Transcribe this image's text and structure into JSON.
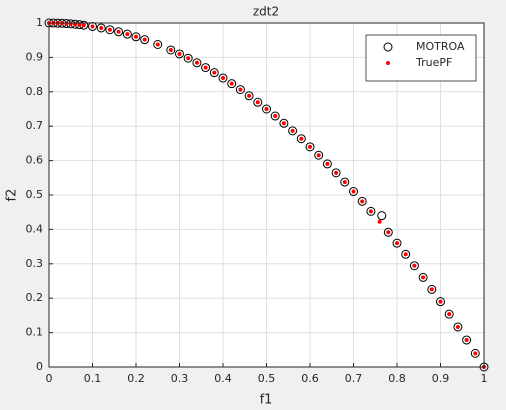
{
  "chart_data": {
    "type": "scatter",
    "title": "zdt2",
    "xlabel": "f1",
    "ylabel": "f2",
    "xlim": [
      0,
      1
    ],
    "ylim": [
      0,
      1
    ],
    "xticks": [
      0,
      0.1,
      0.2,
      0.3,
      0.4,
      0.5,
      0.6,
      0.7,
      0.8,
      0.9,
      1
    ],
    "yticks": [
      0,
      0.1,
      0.2,
      0.3,
      0.4,
      0.5,
      0.6,
      0.7,
      0.8,
      0.9,
      1
    ],
    "grid": true,
    "legend": "upper right",
    "series": [
      {
        "name": "MOTROA",
        "color": "#000000",
        "marker": "circle",
        "x": [
          0,
          0.01,
          0.02,
          0.03,
          0.04,
          0.05,
          0.06,
          0.07,
          0.08,
          0.1,
          0.12,
          0.14,
          0.16,
          0.18,
          0.2,
          0.22,
          0.25,
          0.28,
          0.3,
          0.32,
          0.34,
          0.36,
          0.38,
          0.4,
          0.42,
          0.44,
          0.46,
          0.48,
          0.5,
          0.52,
          0.54,
          0.56,
          0.58,
          0.6,
          0.62,
          0.64,
          0.66,
          0.68,
          0.7,
          0.72,
          0.74,
          0.765,
          0.78,
          0.8,
          0.82,
          0.84,
          0.86,
          0.88,
          0.9,
          0.92,
          0.94,
          0.96,
          0.98,
          1
        ],
        "values": [
          1,
          0.9999,
          0.9996,
          0.9991,
          0.9984,
          0.9975,
          0.9964,
          0.9951,
          0.9936,
          0.99,
          0.9856,
          0.9804,
          0.9744,
          0.9676,
          0.96,
          0.9516,
          0.9375,
          0.9216,
          0.91,
          0.8976,
          0.8844,
          0.8704,
          0.8556,
          0.84,
          0.8236,
          0.8064,
          0.7884,
          0.7696,
          0.75,
          0.7296,
          0.7084,
          0.6864,
          0.6636,
          0.64,
          0.6156,
          0.5904,
          0.5644,
          0.5376,
          0.51,
          0.4816,
          0.4524,
          0.44,
          0.3916,
          0.36,
          0.3276,
          0.2944,
          0.2604,
          0.2256,
          0.19,
          0.1536,
          0.1164,
          0.0784,
          0.0396,
          0
        ]
      },
      {
        "name": "TruePF",
        "color": "#ff0000",
        "marker": "dot",
        "x": [
          0,
          0.01,
          0.02,
          0.03,
          0.04,
          0.05,
          0.06,
          0.07,
          0.08,
          0.1,
          0.12,
          0.14,
          0.16,
          0.18,
          0.2,
          0.22,
          0.25,
          0.28,
          0.3,
          0.32,
          0.34,
          0.36,
          0.38,
          0.4,
          0.42,
          0.44,
          0.46,
          0.48,
          0.5,
          0.52,
          0.54,
          0.56,
          0.58,
          0.6,
          0.62,
          0.64,
          0.66,
          0.68,
          0.7,
          0.72,
          0.74,
          0.76,
          0.78,
          0.8,
          0.82,
          0.84,
          0.86,
          0.88,
          0.9,
          0.92,
          0.94,
          0.96,
          0.98,
          1
        ],
        "values": [
          1,
          0.9999,
          0.9996,
          0.9991,
          0.9984,
          0.9975,
          0.9964,
          0.9951,
          0.9936,
          0.99,
          0.9856,
          0.9804,
          0.9744,
          0.9676,
          0.96,
          0.9516,
          0.9375,
          0.9216,
          0.91,
          0.8976,
          0.8844,
          0.8704,
          0.8556,
          0.84,
          0.8236,
          0.8064,
          0.7884,
          0.7696,
          0.75,
          0.7296,
          0.7084,
          0.6864,
          0.6636,
          0.64,
          0.6156,
          0.5904,
          0.5644,
          0.5376,
          0.51,
          0.4816,
          0.4524,
          0.4224,
          0.3916,
          0.36,
          0.3276,
          0.2944,
          0.2604,
          0.2256,
          0.19,
          0.1536,
          0.1164,
          0.0784,
          0.0396,
          0
        ]
      }
    ]
  }
}
